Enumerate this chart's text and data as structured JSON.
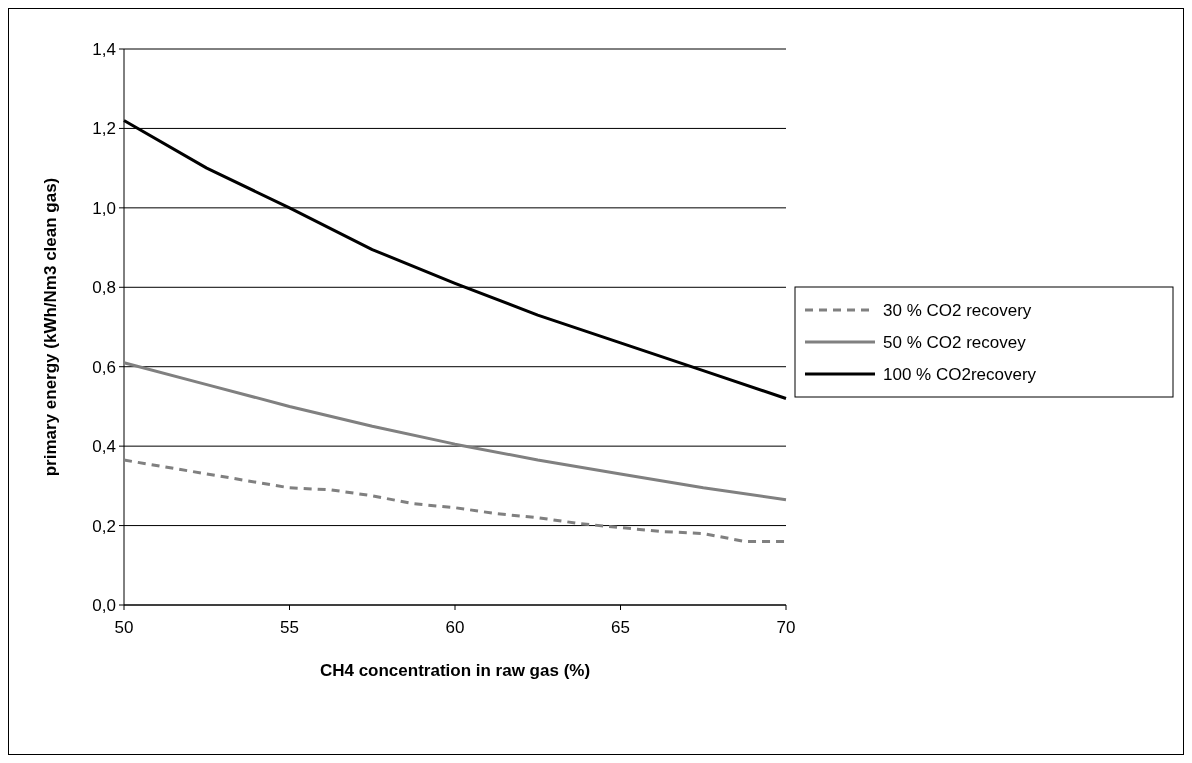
{
  "chart_data": {
    "type": "line",
    "xlabel": "CH4 concentration in raw gas (%)",
    "ylabel": "primary energy (kWh/Nm3 clean gas)",
    "xlim": [
      50,
      70
    ],
    "xticks": [
      50,
      55,
      60,
      65,
      70
    ],
    "ylim": [
      0,
      1.4
    ],
    "yticks": [
      {
        "value": 0,
        "label": "0,0"
      },
      {
        "value": 0.2,
        "label": "0,2"
      },
      {
        "value": 0.4,
        "label": "0,4"
      },
      {
        "value": 0.6,
        "label": "0,6"
      },
      {
        "value": 0.8,
        "label": "0,8"
      },
      {
        "value": 1.0,
        "label": "1,0"
      },
      {
        "value": 1.2,
        "label": "1,2"
      },
      {
        "value": 1.4,
        "label": "1,4"
      }
    ],
    "grid": "y",
    "legend": "right",
    "series": [
      {
        "name": "30 % CO2 recovery",
        "color": "#808080",
        "line_style": "dashed",
        "x": [
          50,
          52.5,
          55,
          56.25,
          57.5,
          58.75,
          60,
          61.25,
          62.5,
          63.75,
          65,
          66.25,
          67.5,
          68.75,
          70
        ],
        "values": [
          0.365,
          0.33,
          0.295,
          0.29,
          0.275,
          0.255,
          0.245,
          0.23,
          0.22,
          0.205,
          0.195,
          0.185,
          0.18,
          0.16,
          0.16
        ]
      },
      {
        "name": "50 % CO2 recovey",
        "color": "#808080",
        "line_style": "solid",
        "x": [
          50,
          52.5,
          55,
          57.5,
          60,
          62.5,
          65,
          67.5,
          70
        ],
        "values": [
          0.61,
          0.555,
          0.5,
          0.45,
          0.405,
          0.365,
          0.33,
          0.295,
          0.265
        ]
      },
      {
        "name": "100 % CO2recovery",
        "color": "#000000",
        "line_style": "solid",
        "x": [
          50,
          52.5,
          55,
          57.5,
          60,
          62.5,
          65,
          67.5,
          70
        ],
        "values": [
          1.22,
          1.1,
          1.0,
          0.895,
          0.81,
          0.73,
          0.66,
          0.59,
          0.52
        ]
      }
    ]
  }
}
